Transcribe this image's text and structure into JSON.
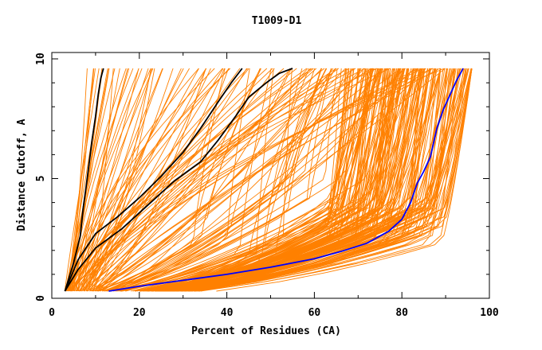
{
  "chart_data": {
    "type": "line",
    "title": "T1009-D1",
    "xlabel": "Percent of Residues (CA)",
    "ylabel": "Distance Cutoff, A",
    "xlim": [
      0,
      100
    ],
    "ylim": [
      0,
      10
    ],
    "x_ticks": [
      0,
      20,
      40,
      60,
      80,
      100
    ],
    "y_ticks": [
      0,
      5,
      10
    ],
    "grid": false,
    "legend": "none",
    "colors": {
      "background": "#ffffff",
      "frame": "#000000",
      "bundle": "#ff8000",
      "highlight_black": "#000000",
      "highlight_blue": "#0000ff"
    },
    "highlighted_series": [
      {
        "color": "#000000",
        "x": [
          3,
          5,
          6.5,
          7.2,
          7.8,
          8.5,
          9.2,
          10,
          10.6,
          11.2,
          11.8
        ],
        "y": [
          0.3,
          1.5,
          2.6,
          3.8,
          4.6,
          5.6,
          6.6,
          7.6,
          8.5,
          9.2,
          9.6
        ]
      },
      {
        "color": "#000000",
        "x": [
          3,
          6,
          10,
          15,
          20,
          25,
          30,
          34,
          38,
          41,
          43.5
        ],
        "y": [
          0.3,
          1.6,
          2.7,
          3.4,
          4.2,
          5.1,
          6.1,
          7.1,
          8.2,
          9.0,
          9.6
        ]
      },
      {
        "color": "#000000",
        "x": [
          3,
          6,
          10,
          16,
          22,
          28,
          34,
          38,
          42,
          45,
          49,
          52,
          55
        ],
        "y": [
          0.3,
          1.2,
          2.1,
          2.9,
          3.9,
          4.9,
          5.7,
          6.6,
          7.6,
          8.4,
          9.0,
          9.4,
          9.6
        ]
      },
      {
        "color": "#0000ff",
        "x": [
          13,
          20,
          30,
          40,
          50,
          60,
          66,
          72,
          77,
          80,
          82,
          83.5,
          85,
          86.5,
          88,
          89.5,
          91,
          92.5,
          94
        ],
        "y": [
          0.3,
          0.5,
          0.75,
          1.0,
          1.3,
          1.65,
          1.95,
          2.3,
          2.8,
          3.3,
          4.0,
          4.8,
          5.3,
          5.9,
          7.1,
          7.9,
          8.5,
          9.1,
          9.6
        ]
      }
    ]
  }
}
